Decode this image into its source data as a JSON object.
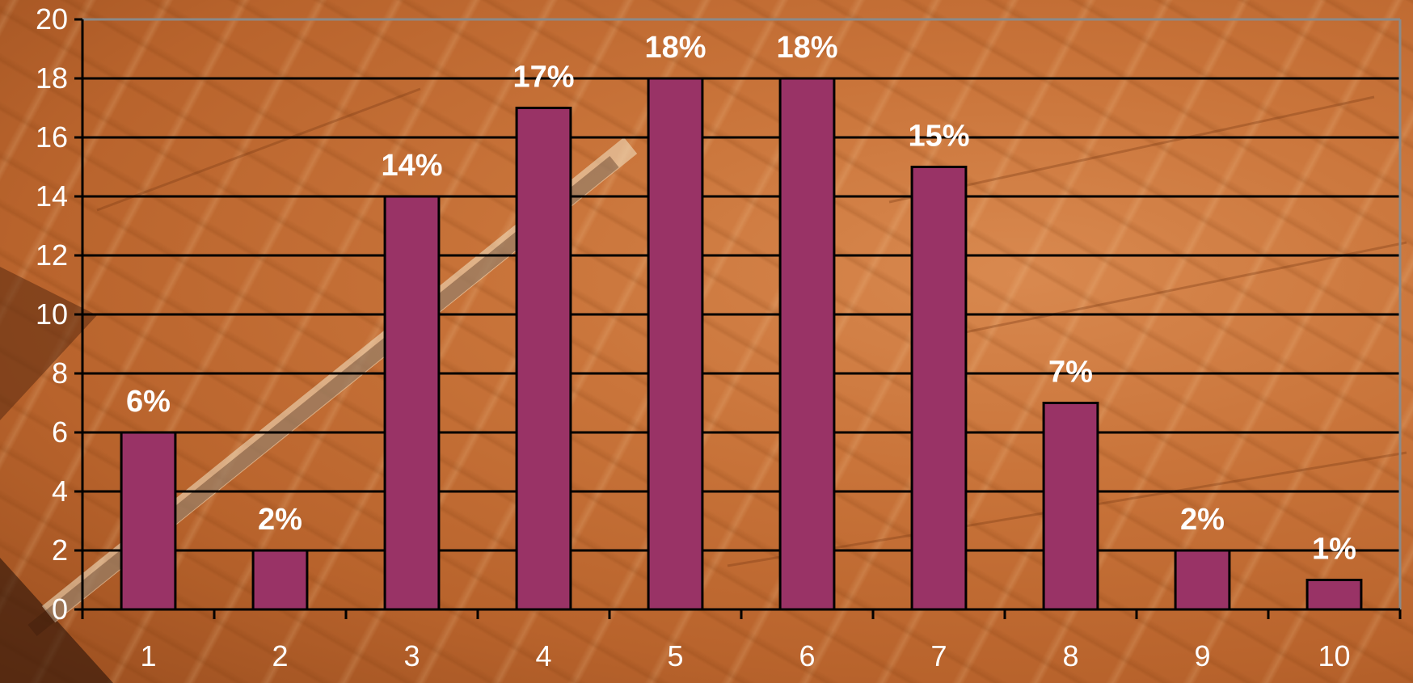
{
  "chart_data": {
    "type": "bar",
    "title": "",
    "xlabel": "",
    "ylabel": "",
    "categories": [
      "1",
      "2",
      "3",
      "4",
      "5",
      "6",
      "7",
      "8",
      "9",
      "10"
    ],
    "values": [
      6,
      2,
      14,
      17,
      18,
      18,
      15,
      7,
      2,
      1
    ],
    "data_labels": [
      "6%",
      "2%",
      "14%",
      "17%",
      "18%",
      "18%",
      "15%",
      "7%",
      "2%",
      "1%"
    ],
    "ylim": [
      0,
      20
    ],
    "y_ticks": [
      0,
      2,
      4,
      6,
      8,
      10,
      12,
      14,
      16,
      18,
      20
    ],
    "grid": true,
    "legend": "none",
    "bar_color": "#993366",
    "grid_color": "#000000",
    "text_color": "#ffffff"
  }
}
